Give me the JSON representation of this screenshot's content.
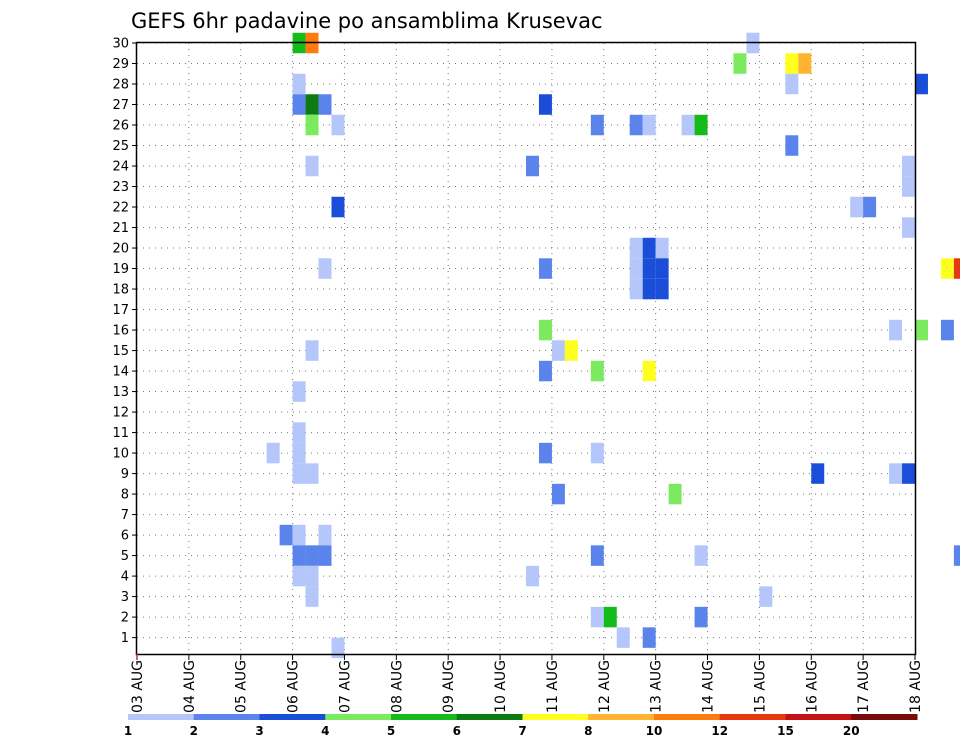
{
  "chart_data": {
    "type": "heatmap",
    "title": "GEFS 6hr padavine po ansamblima Krusevac",
    "x_tick_labels": [
      "03 AUG",
      "04 AUG",
      "05 AUG",
      "06 AUG",
      "07 AUG",
      "08 AUG",
      "09 AUG",
      "10 AUG",
      "11 AUG",
      "12 AUG",
      "13 AUG",
      "14 AUG",
      "15 AUG",
      "16 AUG",
      "17 AUG",
      "18 AUG"
    ],
    "x_range_days": [
      0,
      15
    ],
    "y_tick_labels": [
      "1",
      "2",
      "3",
      "4",
      "5",
      "6",
      "7",
      "8",
      "9",
      "10",
      "11",
      "12",
      "13",
      "14",
      "15",
      "16",
      "17",
      "18",
      "19",
      "20",
      "21",
      "22",
      "23",
      "24",
      "25",
      "26",
      "27",
      "28",
      "29",
      "30"
    ],
    "y_range": [
      0.2,
      30
    ],
    "grid": true,
    "colorbar": {
      "position": "bottom",
      "labels": [
        "1",
        "2",
        "3",
        "4",
        "5",
        "6",
        "7",
        "8",
        "10",
        "12",
        "15",
        "20"
      ],
      "colors": [
        "#b4c6fa",
        "#5a84ec",
        "#1a4ed8",
        "#7bea5e",
        "#15bb1a",
        "#0d7a12",
        "#ffff1f",
        "#ffb331",
        "#ff7a0f",
        "#e8380f",
        "#c41212",
        "#7a0a0a"
      ]
    },
    "cells": [
      {
        "day": 3,
        "member": 30,
        "level": 5
      },
      {
        "day": 3.25,
        "member": 30,
        "level": 9
      },
      {
        "day": 3,
        "member": 28,
        "level": 1
      },
      {
        "day": 3,
        "member": 27,
        "level": 2
      },
      {
        "day": 3.25,
        "member": 27,
        "level": 6
      },
      {
        "day": 3.5,
        "member": 27,
        "level": 2
      },
      {
        "day": 3.25,
        "member": 26,
        "level": 4
      },
      {
        "day": 3.75,
        "member": 26,
        "level": 1
      },
      {
        "day": 3.25,
        "member": 24,
        "level": 1
      },
      {
        "day": 3.75,
        "member": 22,
        "level": 3
      },
      {
        "day": 3.5,
        "member": 19,
        "level": 1
      },
      {
        "day": 3.25,
        "member": 15,
        "level": 1
      },
      {
        "day": 3,
        "member": 13,
        "level": 1
      },
      {
        "day": 3,
        "member": 11,
        "level": 1
      },
      {
        "day": 2.5,
        "member": 10,
        "level": 1
      },
      {
        "day": 3,
        "member": 10,
        "level": 1
      },
      {
        "day": 3,
        "member": 9,
        "level": 1
      },
      {
        "day": 3.25,
        "member": 9,
        "level": 1
      },
      {
        "day": 2.75,
        "member": 6,
        "level": 2
      },
      {
        "day": 3,
        "member": 6,
        "level": 1
      },
      {
        "day": 3.5,
        "member": 6,
        "level": 1
      },
      {
        "day": 3,
        "member": 5,
        "level": 2
      },
      {
        "day": 3.25,
        "member": 5,
        "level": 2
      },
      {
        "day": 3.5,
        "member": 5,
        "level": 2
      },
      {
        "day": 3,
        "member": 4,
        "level": 1
      },
      {
        "day": 3.25,
        "member": 4,
        "level": 1
      },
      {
        "day": 3.25,
        "member": 3,
        "level": 1
      },
      {
        "day": 3.75,
        "member": 0.5,
        "level": 1
      },
      {
        "day": 7.75,
        "member": 27,
        "level": 3
      },
      {
        "day": 7.5,
        "member": 24,
        "level": 2
      },
      {
        "day": 7.75,
        "member": 19,
        "level": 2
      },
      {
        "day": 7.75,
        "member": 16,
        "level": 4
      },
      {
        "day": 8,
        "member": 15,
        "level": 1
      },
      {
        "day": 8.25,
        "member": 15,
        "level": 7
      },
      {
        "day": 7.75,
        "member": 14,
        "level": 2
      },
      {
        "day": 7.75,
        "member": 10,
        "level": 2
      },
      {
        "day": 8,
        "member": 8,
        "level": 2
      },
      {
        "day": 7.5,
        "member": 4,
        "level": 1
      },
      {
        "day": 8.75,
        "member": 26,
        "level": 2
      },
      {
        "day": 8.75,
        "member": 14,
        "level": 4
      },
      {
        "day": 8.75,
        "member": 10,
        "level": 1
      },
      {
        "day": 8.75,
        "member": 5,
        "level": 2
      },
      {
        "day": 8.75,
        "member": 2,
        "level": 1
      },
      {
        "day": 9,
        "member": 2,
        "level": 5
      },
      {
        "day": 9.25,
        "member": 1,
        "level": 1
      },
      {
        "day": 9.5,
        "member": 26,
        "level": 2
      },
      {
        "day": 9.75,
        "member": 26,
        "level": 1
      },
      {
        "day": 9.5,
        "member": 20,
        "level": 1
      },
      {
        "day": 9.75,
        "member": 20,
        "level": 3
      },
      {
        "day": 10,
        "member": 20,
        "level": 1
      },
      {
        "day": 9.5,
        "member": 19,
        "level": 1
      },
      {
        "day": 9.75,
        "member": 19,
        "level": 3
      },
      {
        "day": 10,
        "member": 19,
        "level": 3
      },
      {
        "day": 9.5,
        "member": 18,
        "level": 1
      },
      {
        "day": 9.75,
        "member": 18,
        "level": 3
      },
      {
        "day": 10,
        "member": 18,
        "level": 3
      },
      {
        "day": 9.75,
        "member": 14,
        "level": 7
      },
      {
        "day": 9.75,
        "member": 1,
        "level": 2
      },
      {
        "day": 10.25,
        "member": 8,
        "level": 4
      },
      {
        "day": 10.5,
        "member": 26,
        "level": 1
      },
      {
        "day": 10.75,
        "member": 26,
        "level": 5
      },
      {
        "day": 10.75,
        "member": 5,
        "level": 1
      },
      {
        "day": 10.75,
        "member": 2,
        "level": 2
      },
      {
        "day": 11.5,
        "member": 29,
        "level": 4
      },
      {
        "day": 11.75,
        "member": 30,
        "level": 1
      },
      {
        "day": 12,
        "member": 3,
        "level": 1
      },
      {
        "day": 12.5,
        "member": 29,
        "level": 7
      },
      {
        "day": 12.75,
        "member": 29,
        "level": 8
      },
      {
        "day": 12.5,
        "member": 28,
        "level": 1
      },
      {
        "day": 12.5,
        "member": 25,
        "level": 2
      },
      {
        "day": 13,
        "member": 9,
        "level": 3
      },
      {
        "day": 13.75,
        "member": 22,
        "level": 1
      },
      {
        "day": 14,
        "member": 22,
        "level": 2
      },
      {
        "day": 14.5,
        "member": 16,
        "level": 1
      },
      {
        "day": 14.5,
        "member": 9,
        "level": 1
      },
      {
        "day": 14.75,
        "member": 9,
        "level": 3
      },
      {
        "day": 14.75,
        "member": 24,
        "level": 1
      },
      {
        "day": 14.75,
        "member": 23,
        "level": 1
      },
      {
        "day": 14.75,
        "member": 21,
        "level": 1
      },
      {
        "day": 15,
        "member": 16,
        "level": 4
      },
      {
        "day": 15,
        "member": 28,
        "level": 3
      },
      {
        "day": 15.5,
        "member": 16,
        "level": 2
      },
      {
        "day": 15.5,
        "member": 19,
        "level": 7
      },
      {
        "day": 15.75,
        "member": 19,
        "level": 10
      },
      {
        "day": 15.75,
        "member": 5,
        "level": 2
      }
    ]
  }
}
